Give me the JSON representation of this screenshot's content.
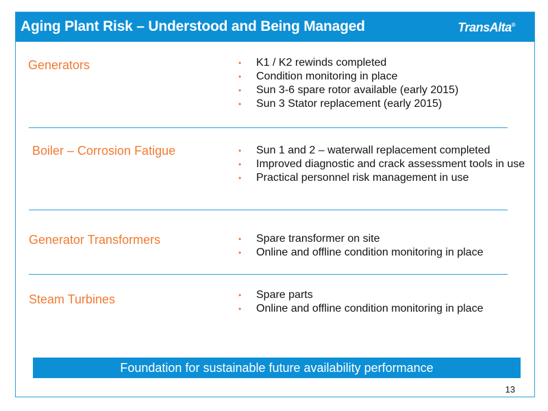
{
  "header": {
    "title": "Aging Plant Risk – Understood and Being Managed",
    "logo": "TransAlta",
    "logo_mark": "®"
  },
  "rows": [
    {
      "label": "Generators",
      "bullets": [
        "K1 / K2 rewinds completed",
        "Condition monitoring in place",
        "Sun 3-6 spare rotor available (early 2015)",
        "Sun 3 Stator replacement (early 2015)"
      ]
    },
    {
      "label": "Boiler – Corrosion Fatigue",
      "bullets": [
        "Sun 1 and 2 – waterwall replacement completed",
        "Improved diagnostic and crack assessment tools in use",
        "Practical personnel risk management in use"
      ]
    },
    {
      "label": "Generator Transformers",
      "bullets": [
        "Spare transformer on site",
        "Online and offline condition monitoring in place"
      ]
    },
    {
      "label": "Steam Turbines",
      "bullets": [
        "Spare parts",
        "Online and offline condition monitoring in place"
      ]
    }
  ],
  "bullet_glyph": "•",
  "footer": {
    "banner": "Foundation for sustainable future availability performance",
    "page_number": "13"
  },
  "colors": {
    "header_blue": "#0d8fd6",
    "label_orange": "#f07a32",
    "divider_blue": "#2e9fd9"
  }
}
